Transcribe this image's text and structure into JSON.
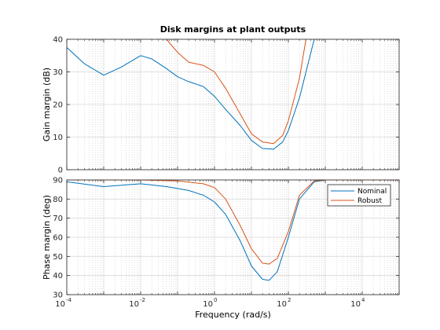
{
  "chart_data": {
    "type": "line",
    "title": "Disk margins at plant outputs",
    "xlabel": "Frequency (rad/s)",
    "xscale": "log",
    "xlim": [
      0.0001,
      100000
    ],
    "xticks": [
      {
        "base": "10",
        "exp": "-4"
      },
      {
        "base": "10",
        "exp": "-2"
      },
      {
        "base": "10",
        "exp": "0"
      },
      {
        "base": "10",
        "exp": "2"
      },
      {
        "base": "10",
        "exp": "4"
      }
    ],
    "grid": true,
    "colors": {
      "Nominal": "#0072bd",
      "Robust": "#d95319"
    },
    "panels": [
      {
        "ylabel": "Gain margin (dB)",
        "ylim": [
          0,
          40
        ],
        "yticks": [
          "0",
          "10",
          "20",
          "30",
          "40"
        ],
        "series": [
          {
            "name": "Nominal",
            "x": [
              0.0001,
              0.0003,
              0.001,
              0.003,
              0.01,
              0.02,
              0.05,
              0.1,
              0.2,
              0.5,
              1,
              2,
              5,
              10,
              20,
              40,
              70,
              100,
              200,
              500
            ],
            "y": [
              37.5,
              32.5,
              29.0,
              31.5,
              35.0,
              34.0,
              31.0,
              28.5,
              27.0,
              25.5,
              22.5,
              18.5,
              13.5,
              9.0,
              6.5,
              6.3,
              8.5,
              12.0,
              22.0,
              40.0
            ]
          },
          {
            "name": "Robust",
            "x": [
              0.05,
              0.1,
              0.2,
              0.5,
              1,
              2,
              5,
              10,
              20,
              40,
              70,
              100,
              200,
              300
            ],
            "y": [
              40.0,
              36.0,
              33.0,
              32.0,
              30.0,
              25.0,
              17.0,
              11.0,
              8.5,
              8.0,
              10.5,
              15.0,
              28.0,
              40.0
            ]
          }
        ]
      },
      {
        "ylabel": "Phase margin (deg)",
        "ylim": [
          30,
          90
        ],
        "yticks": [
          "30",
          "40",
          "50",
          "60",
          "70",
          "80",
          "90"
        ],
        "legend": "top-right",
        "series": [
          {
            "name": "Nominal",
            "x": [
              0.0001,
              0.001,
              0.01,
              0.05,
              0.2,
              0.5,
              1,
              2,
              5,
              10,
              20,
              30,
              50,
              100,
              200,
              500,
              1000,
              100000
            ],
            "y": [
              89.0,
              86.5,
              88.0,
              86.5,
              84.5,
              82.0,
              78.5,
              72.0,
              58.0,
              45.0,
              38.0,
              37.5,
              42.0,
              60.0,
              80.0,
              89.0,
              90.0,
              90.0
            ]
          },
          {
            "name": "Robust",
            "x": [
              0.0001,
              0.001,
              0.01,
              0.1,
              0.5,
              1,
              2,
              5,
              10,
              20,
              30,
              50,
              100,
              200,
              500,
              1000,
              100000
            ],
            "y": [
              90.0,
              90.0,
              90.0,
              89.5,
              88.0,
              86.0,
              80.0,
              66.0,
              54.0,
              46.5,
              46.0,
              49.0,
              63.0,
              82.0,
              89.5,
              90.0,
              90.0
            ]
          }
        ]
      }
    ]
  }
}
